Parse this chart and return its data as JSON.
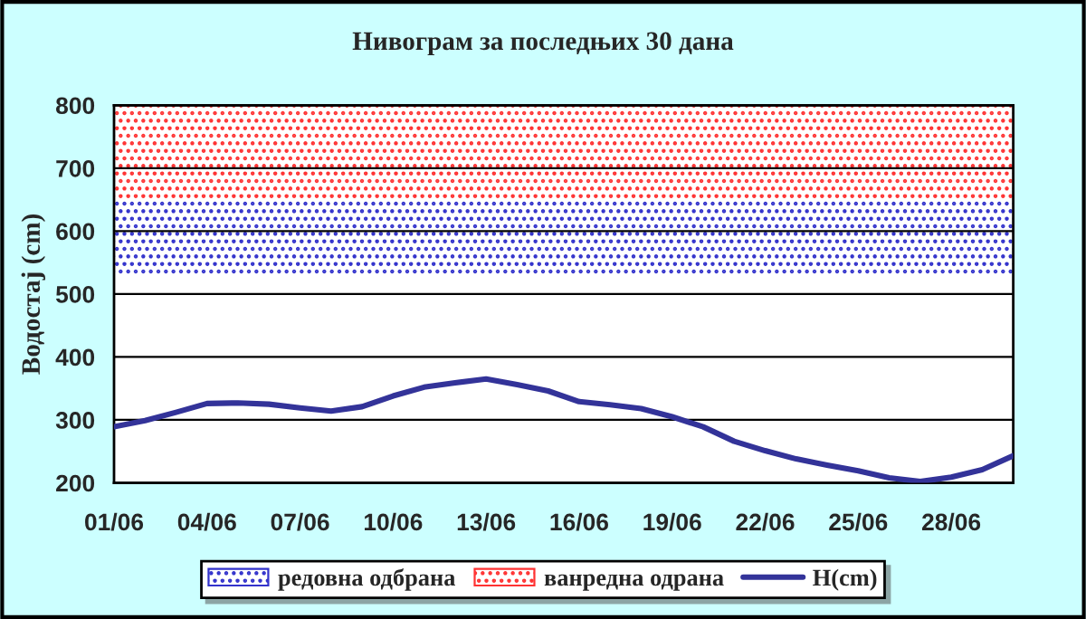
{
  "chart_data": {
    "type": "line",
    "title": "Нивограм за последњих 30 дана",
    "ylabel": "Водостај (cm)",
    "categories": [
      "01/06",
      null,
      null,
      "04/06",
      null,
      null,
      "07/06",
      null,
      null,
      "10/06",
      null,
      null,
      "13/06",
      null,
      null,
      "16/06",
      null,
      null,
      "19/06",
      null,
      null,
      "22/06",
      null,
      null,
      "25/06",
      null,
      null,
      "28/06",
      null,
      null
    ],
    "ylim": [
      200,
      800
    ],
    "yticks": [
      200,
      300,
      400,
      500,
      600,
      700,
      800
    ],
    "series": [
      {
        "name": "H(cm)",
        "color": "#333399",
        "values": [
          289,
          299,
          312,
          326,
          327,
          325,
          319,
          314,
          321,
          338,
          352,
          359,
          365,
          356,
          346,
          329,
          324,
          318,
          305,
          289,
          266,
          251,
          238,
          228,
          219,
          208,
          202,
          209,
          221,
          243
        ]
      }
    ],
    "bands": [
      {
        "axis": "y",
        "from": 530,
        "to": 650,
        "label": "редовна одбрана",
        "color": "#3333cc"
      },
      {
        "axis": "y",
        "from": 650,
        "to": 800,
        "label": "ванредна одрана",
        "color": "#ff3333"
      }
    ],
    "grid": "y",
    "legend": "bottom",
    "marker": "none",
    "line_style": "solid"
  }
}
